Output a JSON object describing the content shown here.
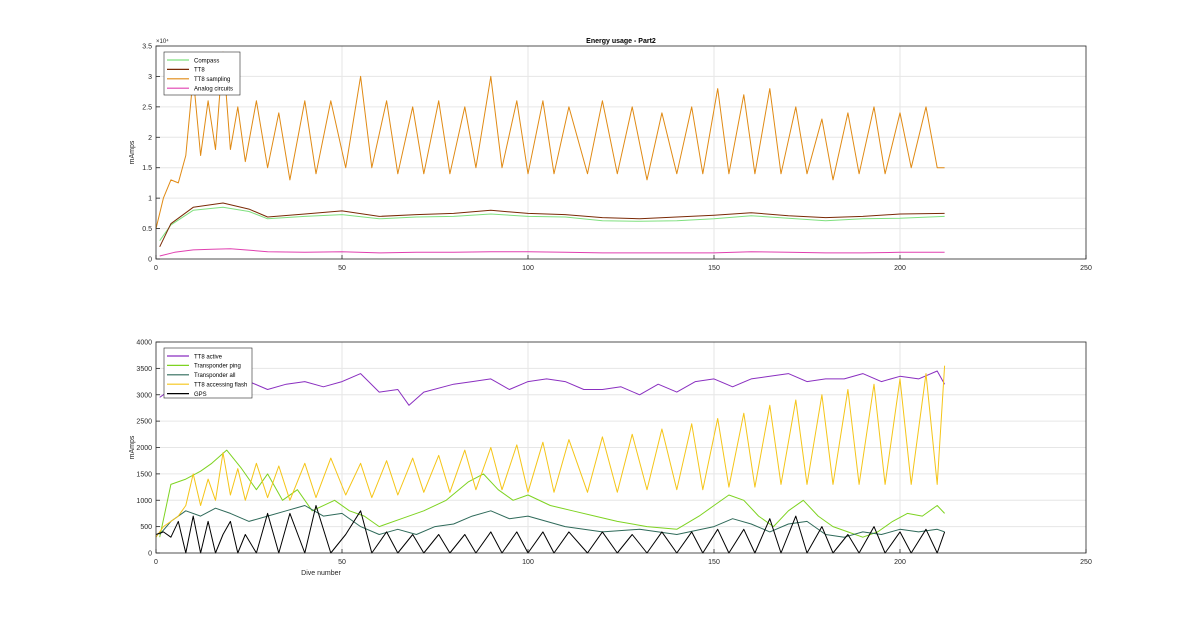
{
  "figure": {
    "colors": {
      "compass": "#7fe07f",
      "tt8": "#7a2a06",
      "tt8_sampling": "#e08a14",
      "analog": "#e040b0",
      "tt8_active": "#8a2fc0",
      "transponder_ping": "#7ed321",
      "transponder_all": "#2f6a5a",
      "tt8_flash": "#f5c518",
      "gps": "#000000",
      "grid": "#e6e6e6",
      "axis": "#262626"
    }
  },
  "chart_data": [
    {
      "type": "line",
      "title": "Energy usage - Part2",
      "xlabel": "",
      "ylabel": "mAmps",
      "exponent_label": "×10⁴",
      "xlim": [
        0,
        250
      ],
      "ylim": [
        0,
        35000
      ],
      "xticks": [
        0,
        50,
        100,
        150,
        200,
        250
      ],
      "yticks": [
        0,
        5000,
        10000,
        15000,
        20000,
        25000,
        30000,
        35000
      ],
      "ytick_labels": [
        "0",
        "0.5",
        "1",
        "1.5",
        "2",
        "2.5",
        "3",
        "3.5"
      ],
      "grid": true,
      "legend_position": "top-left",
      "series": [
        {
          "name": "Compass",
          "color_key": "compass",
          "x": [
            1,
            4,
            10,
            18,
            25,
            30,
            40,
            50,
            60,
            70,
            80,
            90,
            100,
            110,
            120,
            130,
            140,
            150,
            160,
            170,
            180,
            190,
            200,
            212
          ],
          "y": [
            3000,
            5600,
            8000,
            8500,
            7800,
            6600,
            7000,
            7300,
            6600,
            6900,
            7000,
            7400,
            7000,
            6900,
            6300,
            6200,
            6300,
            6600,
            7100,
            6700,
            6300,
            6600,
            6700,
            7000
          ]
        },
        {
          "name": "TT8",
          "color_key": "tt8",
          "x": [
            1,
            4,
            10,
            18,
            25,
            30,
            40,
            50,
            60,
            70,
            80,
            90,
            100,
            110,
            120,
            130,
            140,
            150,
            160,
            170,
            180,
            190,
            200,
            212
          ],
          "y": [
            2000,
            5800,
            8500,
            9200,
            8200,
            6900,
            7400,
            7900,
            7000,
            7300,
            7500,
            8000,
            7500,
            7300,
            6800,
            6600,
            6900,
            7200,
            7600,
            7100,
            6800,
            7000,
            7400,
            7500
          ]
        },
        {
          "name": "TT8 sampling",
          "color_key": "tt8_sampling",
          "x": [
            0,
            2,
            4,
            6,
            8,
            10,
            12,
            14,
            16,
            18,
            20,
            22,
            24,
            27,
            30,
            33,
            36,
            40,
            43,
            47,
            51,
            55,
            58,
            62,
            65,
            69,
            72,
            76,
            79,
            83,
            86,
            90,
            93,
            97,
            100,
            104,
            107,
            111,
            116,
            120,
            124,
            128,
            132,
            136,
            140,
            144,
            147,
            151,
            154,
            158,
            161,
            165,
            168,
            172,
            175,
            179,
            182,
            186,
            189,
            193,
            196,
            200,
            203,
            207,
            210,
            212
          ],
          "y": [
            5000,
            10000,
            13000,
            12500,
            17000,
            30000,
            17000,
            26000,
            18000,
            34000,
            18000,
            25000,
            16000,
            26000,
            15000,
            24000,
            13000,
            26000,
            14000,
            26000,
            15000,
            30000,
            15000,
            26000,
            14000,
            25000,
            14000,
            26000,
            14000,
            25000,
            15000,
            30000,
            15000,
            26000,
            14000,
            26000,
            14000,
            25000,
            14000,
            26000,
            14000,
            25000,
            13000,
            24000,
            14000,
            25000,
            14000,
            28000,
            14000,
            27000,
            14000,
            28000,
            14000,
            25000,
            14000,
            23000,
            13000,
            24000,
            14000,
            25000,
            14000,
            24000,
            15000,
            25000,
            15000,
            15000
          ]
        },
        {
          "name": "Analog circuits",
          "color_key": "analog",
          "x": [
            1,
            5,
            10,
            15,
            20,
            30,
            40,
            50,
            60,
            70,
            80,
            90,
            100,
            110,
            120,
            130,
            140,
            150,
            160,
            170,
            180,
            190,
            200,
            212
          ],
          "y": [
            500,
            1100,
            1500,
            1600,
            1700,
            1200,
            1100,
            1200,
            1000,
            1100,
            1100,
            1200,
            1200,
            1100,
            1000,
            1000,
            1000,
            1000,
            1200,
            1100,
            1000,
            1000,
            1100,
            1100
          ]
        }
      ]
    },
    {
      "type": "line",
      "title": "",
      "xlabel": "Dive number",
      "ylabel": "mAmps",
      "xlim": [
        0,
        250
      ],
      "ylim": [
        0,
        4000
      ],
      "xticks": [
        0,
        50,
        100,
        150,
        200,
        250
      ],
      "yticks": [
        0,
        500,
        1000,
        1500,
        2000,
        2500,
        3000,
        3500,
        4000
      ],
      "ytick_labels": [
        "0",
        "500",
        "1000",
        "1500",
        "2000",
        "2500",
        "3000",
        "3500",
        "4000"
      ],
      "grid": true,
      "legend_position": "top-left",
      "series": [
        {
          "name": "TT8 active",
          "color_key": "tt8_active",
          "x": [
            1,
            5,
            10,
            15,
            20,
            25,
            30,
            35,
            40,
            45,
            50,
            55,
            60,
            65,
            68,
            72,
            80,
            85,
            90,
            95,
            100,
            105,
            110,
            115,
            120,
            125,
            130,
            135,
            140,
            145,
            150,
            155,
            160,
            165,
            170,
            175,
            180,
            185,
            190,
            195,
            200,
            205,
            210,
            212
          ],
          "y": [
            2950,
            3150,
            3250,
            3200,
            3100,
            3250,
            3100,
            3200,
            3250,
            3150,
            3250,
            3400,
            3050,
            3100,
            2800,
            3050,
            3200,
            3250,
            3300,
            3100,
            3250,
            3300,
            3250,
            3100,
            3100,
            3150,
            3000,
            3200,
            3050,
            3250,
            3300,
            3150,
            3300,
            3350,
            3400,
            3250,
            3300,
            3300,
            3400,
            3250,
            3350,
            3300,
            3450,
            3200
          ]
        },
        {
          "name": "Transponder ping",
          "color_key": "transponder_ping",
          "x": [
            1,
            4,
            8,
            12,
            15,
            19,
            23,
            27,
            30,
            34,
            38,
            42,
            48,
            52,
            56,
            60,
            66,
            72,
            78,
            84,
            88,
            92,
            96,
            100,
            106,
            112,
            118,
            124,
            132,
            140,
            146,
            150,
            154,
            158,
            162,
            166,
            170,
            174,
            178,
            182,
            186,
            190,
            194,
            198,
            202,
            206,
            210,
            212
          ],
          "y": [
            300,
            1300,
            1400,
            1550,
            1700,
            1950,
            1600,
            1200,
            1500,
            1000,
            1200,
            800,
            1000,
            800,
            700,
            500,
            650,
            800,
            1000,
            1350,
            1500,
            1200,
            1000,
            1100,
            900,
            800,
            700,
            600,
            500,
            450,
            700,
            900,
            1100,
            1000,
            700,
            500,
            800,
            1000,
            700,
            500,
            400,
            300,
            400,
            600,
            750,
            700,
            900,
            750
          ]
        },
        {
          "name": "Transponder all",
          "color_key": "transponder_all",
          "x": [
            1,
            4,
            8,
            12,
            16,
            20,
            25,
            30,
            35,
            40,
            45,
            50,
            55,
            60,
            65,
            70,
            75,
            80,
            85,
            90,
            95,
            100,
            110,
            120,
            130,
            140,
            150,
            155,
            160,
            165,
            170,
            175,
            180,
            185,
            190,
            195,
            200,
            205,
            210,
            212
          ],
          "y": [
            350,
            600,
            800,
            700,
            850,
            750,
            600,
            700,
            800,
            900,
            700,
            750,
            500,
            350,
            450,
            350,
            500,
            550,
            700,
            800,
            650,
            700,
            500,
            400,
            450,
            350,
            500,
            650,
            550,
            400,
            550,
            600,
            350,
            300,
            400,
            350,
            450,
            400,
            450,
            400
          ]
        },
        {
          "name": "TT8 accessing flash",
          "color_key": "tt8_flash",
          "x": [
            0,
            2,
            4,
            6,
            8,
            10,
            12,
            14,
            16,
            18,
            20,
            22,
            24,
            27,
            30,
            33,
            36,
            40,
            43,
            47,
            51,
            55,
            58,
            62,
            65,
            69,
            72,
            76,
            79,
            83,
            86,
            90,
            93,
            97,
            100,
            104,
            107,
            111,
            116,
            120,
            124,
            128,
            132,
            136,
            140,
            144,
            147,
            151,
            154,
            158,
            161,
            165,
            168,
            172,
            175,
            179,
            182,
            186,
            189,
            193,
            196,
            200,
            203,
            207,
            210,
            212
          ],
          "y": [
            300,
            500,
            600,
            700,
            900,
            1500,
            900,
            1400,
            1000,
            1900,
            1100,
            1600,
            1000,
            1700,
            1050,
            1650,
            1000,
            1700,
            1050,
            1800,
            1100,
            1700,
            1050,
            1750,
            1100,
            1800,
            1150,
            1850,
            1150,
            1950,
            1200,
            2000,
            1200,
            2050,
            1150,
            2100,
            1150,
            2150,
            1150,
            2200,
            1150,
            2250,
            1200,
            2350,
            1200,
            2450,
            1200,
            2550,
            1250,
            2650,
            1250,
            2800,
            1300,
            2900,
            1300,
            3000,
            1300,
            3100,
            1300,
            3200,
            1300,
            3300,
            1300,
            3400,
            1300,
            3550
          ]
        },
        {
          "name": "GPS",
          "color_key": "gps",
          "x": [
            0,
            2,
            4,
            6,
            8,
            10,
            12,
            14,
            16,
            18,
            20,
            22,
            24,
            27,
            30,
            33,
            36,
            40,
            43,
            47,
            51,
            55,
            58,
            62,
            65,
            69,
            72,
            76,
            79,
            83,
            86,
            90,
            93,
            97,
            100,
            104,
            107,
            111,
            116,
            120,
            124,
            128,
            132,
            136,
            140,
            144,
            147,
            151,
            154,
            158,
            161,
            165,
            168,
            172,
            175,
            179,
            182,
            186,
            189,
            193,
            196,
            200,
            203,
            207,
            210,
            212
          ],
          "y": [
            350,
            400,
            300,
            600,
            0,
            700,
            0,
            600,
            0,
            350,
            600,
            0,
            350,
            0,
            750,
            0,
            750,
            0,
            900,
            0,
            350,
            800,
            0,
            400,
            0,
            350,
            0,
            350,
            0,
            350,
            0,
            400,
            0,
            400,
            0,
            400,
            0,
            400,
            0,
            400,
            0,
            350,
            0,
            400,
            0,
            400,
            0,
            450,
            0,
            450,
            0,
            650,
            0,
            700,
            0,
            500,
            0,
            350,
            0,
            500,
            0,
            400,
            0,
            450,
            0,
            400
          ]
        }
      ]
    }
  ]
}
